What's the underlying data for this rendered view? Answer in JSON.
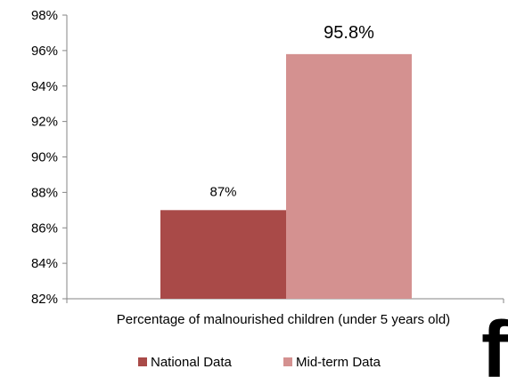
{
  "chart_data": {
    "type": "bar",
    "title": "",
    "xlabel": "",
    "ylabel": "",
    "categories": [
      "Percentage of malnourished children (under 5 years old)"
    ],
    "series": [
      {
        "name": "National Data",
        "values": [
          87
        ],
        "color": "#A94A48",
        "data_label": "87%"
      },
      {
        "name": "Mid-term Data",
        "values": [
          95.8
        ],
        "color": "#D49190",
        "data_label": "95.8%"
      }
    ],
    "ylim": [
      82,
      98
    ],
    "y_ticks": [
      82,
      84,
      86,
      88,
      90,
      92,
      94,
      96,
      98
    ],
    "y_tick_labels": [
      "82%",
      "84%",
      "86%",
      "88%",
      "90%",
      "92%",
      "94%",
      "96%",
      "98%"
    ],
    "grid": false,
    "legend_position": "bottom"
  },
  "watermark": {
    "text": "fl",
    "icon": "logo-glyph"
  }
}
